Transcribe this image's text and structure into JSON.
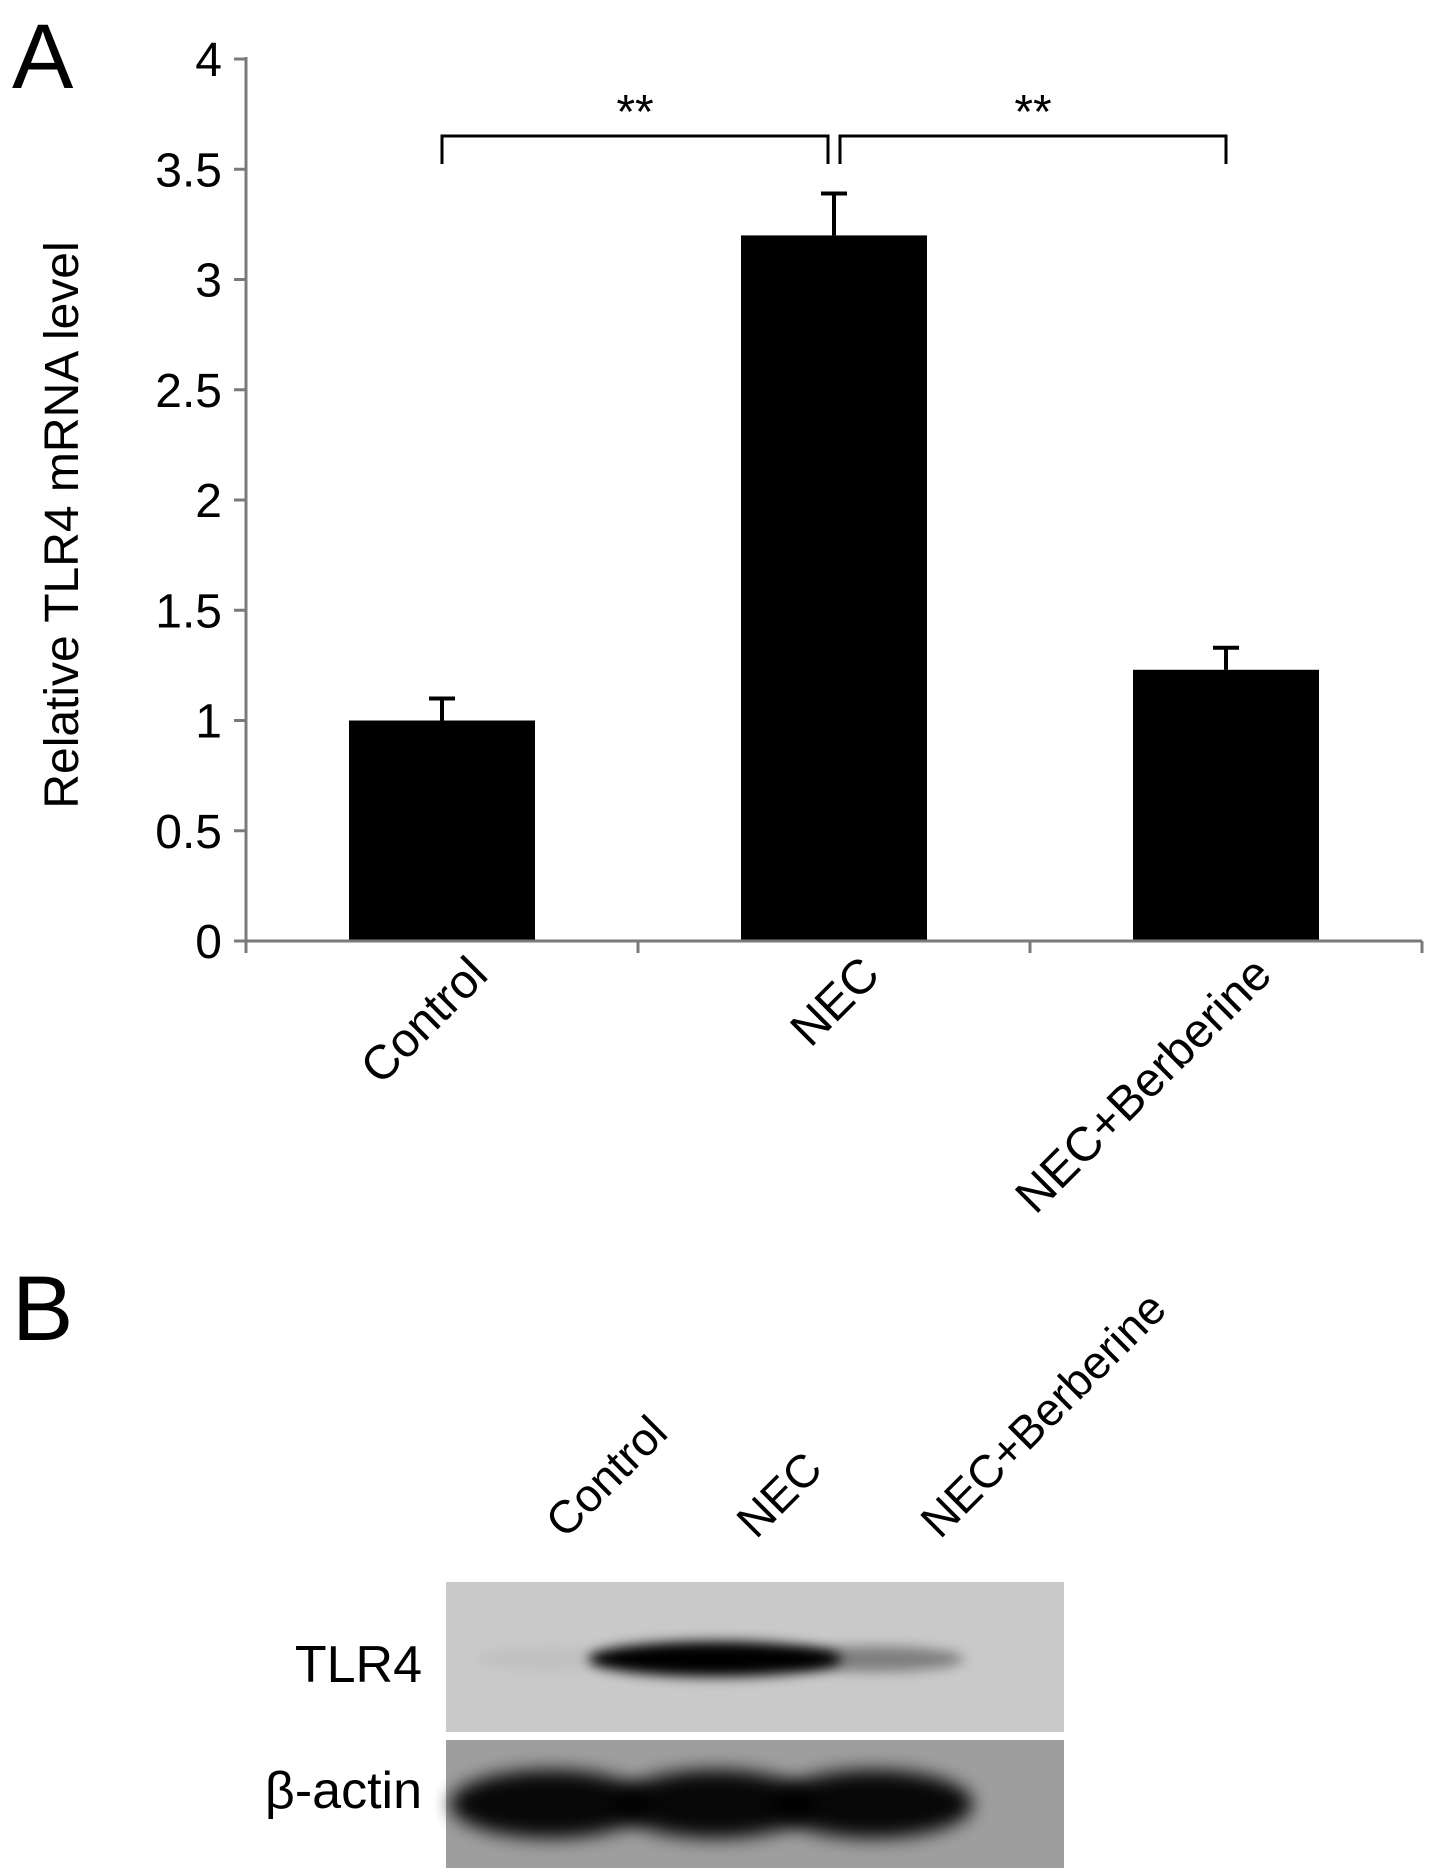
{
  "panels": {
    "a_label": "A",
    "b_label": "B"
  },
  "chart_data": {
    "type": "bar",
    "categories": [
      "Control",
      "NEC",
      "NEC+Berberine"
    ],
    "values": [
      1.0,
      3.2,
      1.23
    ],
    "error": [
      0.1,
      0.19,
      0.1
    ],
    "title": "",
    "xlabel": "",
    "ylabel": "Relative TLR4 mRNA level",
    "ylim": [
      0,
      4
    ],
    "yticks": [
      0,
      0.5,
      1,
      1.5,
      2,
      2.5,
      3,
      3.5,
      4
    ],
    "ytick_labels": [
      "0",
      "0.5",
      "1",
      "1.5",
      "2",
      "2.5",
      "3",
      "3.5",
      "4"
    ],
    "grid": false,
    "legend": "none",
    "bar_color": "#000000",
    "significance": [
      {
        "from": "Control",
        "to": "NEC",
        "label": "**"
      },
      {
        "from": "NEC",
        "to": "NEC+Berberine",
        "label": "**"
      }
    ]
  },
  "western_blot": {
    "lane_labels": [
      "Control",
      "NEC",
      "NEC+Berberine"
    ],
    "rows": [
      {
        "label": "TLR4",
        "intensities": [
          0.04,
          0.95,
          0.35
        ]
      },
      {
        "label": "β-actin",
        "intensities": [
          0.95,
          0.95,
          0.95
        ]
      }
    ]
  }
}
